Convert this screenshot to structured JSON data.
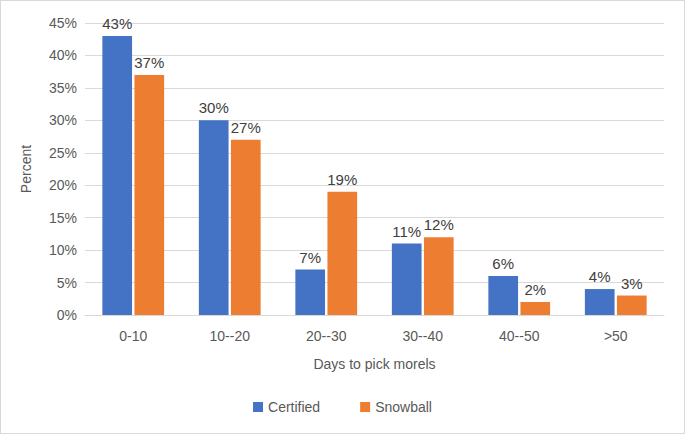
{
  "chart_data": {
    "type": "bar",
    "categories": [
      "0-10",
      "10--20",
      "20--30",
      "30--40",
      "40--50",
      ">50"
    ],
    "series": [
      {
        "name": "Certified",
        "color": "#4472c4",
        "values": [
          43,
          30,
          7,
          11,
          6,
          4
        ],
        "value_labels": [
          "43%",
          "30%",
          "7%",
          "11%",
          "6%",
          "4%"
        ]
      },
      {
        "name": "Snowball",
        "color": "#ed7d31",
        "values": [
          37,
          27,
          19,
          12,
          2,
          3
        ],
        "value_labels": [
          "37%",
          "27%",
          "19%",
          "12%",
          "2%",
          "3%"
        ]
      }
    ],
    "x_label": "Days to pick morels",
    "y_label": "Percent",
    "ylim": [
      0,
      45
    ],
    "yticks": [
      {
        "value": 0,
        "label": "0%"
      },
      {
        "value": 5,
        "label": "5%"
      },
      {
        "value": 10,
        "label": "10%"
      },
      {
        "value": 15,
        "label": "15%"
      },
      {
        "value": 20,
        "label": "20%"
      },
      {
        "value": 25,
        "label": "25%"
      },
      {
        "value": 30,
        "label": "30%"
      },
      {
        "value": 35,
        "label": "35%"
      },
      {
        "value": 40,
        "label": "40%"
      },
      {
        "value": 45,
        "label": "45%"
      }
    ],
    "grid": true,
    "legend": "bottom",
    "data_labels": true
  }
}
